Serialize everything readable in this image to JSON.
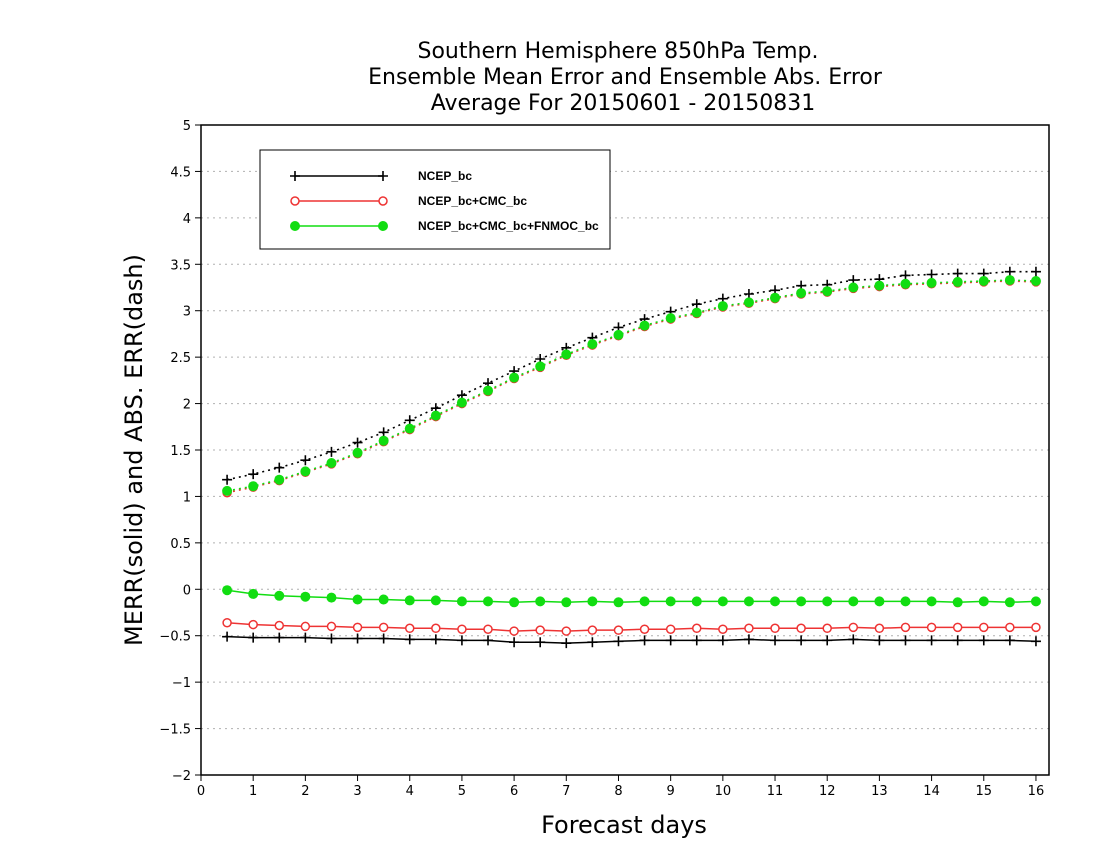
{
  "chart_data": {
    "type": "line",
    "title": [
      "Southern Hemisphere 850hPa Temp.",
      "Ensemble Mean Error and Ensemble Abs. Error",
      "Average For 20150601 - 20150831"
    ],
    "xlabel": "Forecast days",
    "ylabel": "MERR(solid) and ABS. ERR(dash)",
    "xlim": [
      0,
      16.25
    ],
    "ylim": [
      -2,
      5
    ],
    "xticks": [
      0,
      1,
      2,
      3,
      4,
      5,
      6,
      7,
      8,
      9,
      10,
      11,
      12,
      13,
      14,
      15,
      16
    ],
    "yticks": [
      -2,
      -1.5,
      -1,
      -0.5,
      0,
      0.5,
      1,
      1.5,
      2,
      2.5,
      3,
      3.5,
      4,
      4.5,
      5
    ],
    "ytick_labels": [
      "−2",
      "−1.5",
      "−1",
      "−0.5",
      "0",
      "0.5",
      "1",
      "1.5",
      "2",
      "2.5",
      "3",
      "3.5",
      "4",
      "4.5",
      "5"
    ],
    "grid": true,
    "legend_position": "top-left",
    "x": [
      0.5,
      1,
      1.5,
      2,
      2.5,
      3,
      3.5,
      4,
      4.5,
      5,
      5.5,
      6,
      6.5,
      7,
      7.5,
      8,
      8.5,
      9,
      9.5,
      10,
      10.5,
      11,
      11.5,
      12,
      12.5,
      13,
      13.5,
      14,
      14.5,
      15,
      15.5,
      16
    ],
    "series": [
      {
        "name": "NCEP_bc",
        "color": "#000000",
        "marker": "plus",
        "merr": [
          -0.51,
          -0.52,
          -0.52,
          -0.52,
          -0.53,
          -0.53,
          -0.53,
          -0.54,
          -0.54,
          -0.55,
          -0.55,
          -0.57,
          -0.57,
          -0.58,
          -0.57,
          -0.56,
          -0.55,
          -0.55,
          -0.55,
          -0.55,
          -0.54,
          -0.55,
          -0.55,
          -0.55,
          -0.54,
          -0.55,
          -0.55,
          -0.55,
          -0.55,
          -0.55,
          -0.55,
          -0.56
        ],
        "abserr": [
          1.18,
          1.24,
          1.31,
          1.39,
          1.48,
          1.58,
          1.69,
          1.82,
          1.95,
          2.09,
          2.22,
          2.35,
          2.48,
          2.6,
          2.71,
          2.82,
          2.91,
          2.99,
          3.07,
          3.13,
          3.18,
          3.22,
          3.27,
          3.28,
          3.33,
          3.34,
          3.38,
          3.39,
          3.4,
          3.4,
          3.42,
          3.42
        ]
      },
      {
        "name": "NCEP_bc+CMC_bc",
        "color": "#ee3333",
        "marker": "open-circle",
        "merr": [
          -0.36,
          -0.38,
          -0.39,
          -0.4,
          -0.4,
          -0.41,
          -0.41,
          -0.42,
          -0.42,
          -0.43,
          -0.43,
          -0.45,
          -0.44,
          -0.45,
          -0.44,
          -0.44,
          -0.43,
          -0.43,
          -0.42,
          -0.43,
          -0.42,
          -0.42,
          -0.42,
          -0.42,
          -0.41,
          -0.42,
          -0.41,
          -0.41,
          -0.41,
          -0.41,
          -0.41,
          -0.41
        ],
        "abserr": [
          1.04,
          1.1,
          1.17,
          1.26,
          1.35,
          1.46,
          1.59,
          1.72,
          1.86,
          2.0,
          2.13,
          2.27,
          2.39,
          2.52,
          2.63,
          2.73,
          2.83,
          2.91,
          2.97,
          3.04,
          3.08,
          3.13,
          3.18,
          3.2,
          3.24,
          3.26,
          3.28,
          3.29,
          3.3,
          3.31,
          3.32,
          3.31
        ]
      },
      {
        "name": "NCEP_bc+CMC_bc+FNMOC_bc",
        "color": "#11dd11",
        "marker": "filled-circle",
        "merr": [
          -0.01,
          -0.05,
          -0.07,
          -0.08,
          -0.09,
          -0.11,
          -0.11,
          -0.12,
          -0.12,
          -0.13,
          -0.13,
          -0.14,
          -0.13,
          -0.14,
          -0.13,
          -0.14,
          -0.13,
          -0.13,
          -0.13,
          -0.13,
          -0.13,
          -0.13,
          -0.13,
          -0.13,
          -0.13,
          -0.13,
          -0.13,
          -0.13,
          -0.14,
          -0.13,
          -0.14,
          -0.13
        ],
        "abserr": [
          1.06,
          1.11,
          1.18,
          1.27,
          1.36,
          1.47,
          1.6,
          1.73,
          1.87,
          2.01,
          2.14,
          2.28,
          2.4,
          2.53,
          2.64,
          2.74,
          2.84,
          2.92,
          2.98,
          3.05,
          3.09,
          3.14,
          3.19,
          3.21,
          3.25,
          3.27,
          3.29,
          3.3,
          3.31,
          3.32,
          3.33,
          3.32
        ]
      }
    ]
  }
}
